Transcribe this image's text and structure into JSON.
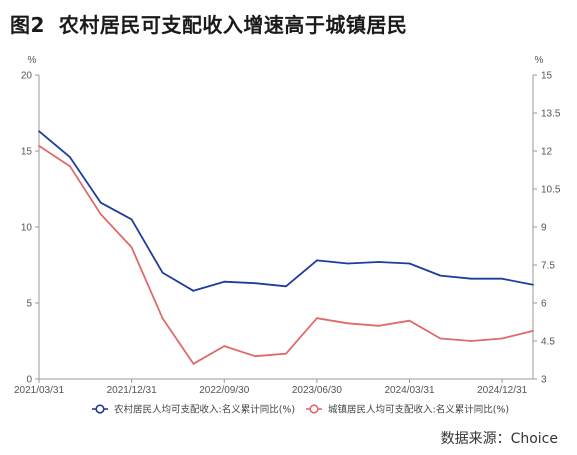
{
  "header": {
    "figure_label": "图2",
    "title": "农村居民可支配收入增速高于城镇居民"
  },
  "source": "数据来源：Choice",
  "chart_data": {
    "type": "line",
    "x": [
      "2021/03/31",
      "2021/06/30",
      "2021/09/30",
      "2021/12/31",
      "2022/03/31",
      "2022/06/30",
      "2022/09/30",
      "2022/12/31",
      "2023/03/31",
      "2023/06/30",
      "2023/09/30",
      "2023/12/31",
      "2024/03/31",
      "2024/06/30",
      "2024/09/30",
      "2024/12/31",
      "2025/03/31"
    ],
    "x_tick_labels": [
      "2021/03/31",
      "2021/12/31",
      "2022/09/30",
      "2023/06/30",
      "2024/03/31",
      "2024/12/31"
    ],
    "x_tick_indices": [
      0,
      3,
      6,
      9,
      12,
      15
    ],
    "y_left": {
      "unit": "%",
      "lim": [
        0,
        20
      ],
      "ticks": [
        0,
        5,
        10,
        15,
        20
      ]
    },
    "y_right": {
      "unit": "%",
      "lim": [
        3,
        15
      ],
      "ticks": [
        "3",
        "4.5",
        "6",
        "7.5",
        "9",
        "10.5",
        "12",
        "13.5",
        "15"
      ]
    },
    "series": [
      {
        "name": "农村居民人均可支配收入:名义累计同比(%)",
        "axis": "left",
        "color": "#1f3d99",
        "values": [
          16.3,
          14.6,
          11.6,
          10.5,
          7.0,
          5.8,
          6.4,
          6.3,
          6.1,
          7.8,
          7.6,
          7.7,
          7.6,
          6.8,
          6.6,
          6.6,
          6.2
        ]
      },
      {
        "name": "城镇居民人均可支配收入:名义累计同比(%)",
        "axis": "right",
        "color": "#e06a6a",
        "values": [
          12.2,
          11.4,
          9.5,
          8.2,
          5.4,
          3.6,
          4.3,
          3.9,
          4.0,
          5.4,
          5.2,
          5.1,
          5.3,
          4.6,
          4.5,
          4.6,
          4.9
        ]
      }
    ],
    "grid": false,
    "legend_position": "bottom"
  }
}
